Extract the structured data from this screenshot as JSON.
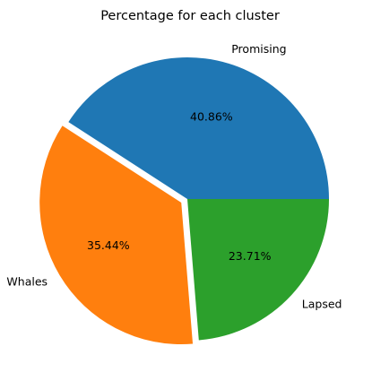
{
  "chart_data": {
    "type": "pie",
    "title": "Percentage for each cluster",
    "slices": [
      {
        "label": "Promising",
        "value": 40.86,
        "pct_label": "40.86%",
        "color": "#1f77b4",
        "explode": false
      },
      {
        "label": "Whales",
        "value": 35.44,
        "pct_label": "35.44%",
        "color": "#ff7f0e",
        "explode": true
      },
      {
        "label": "Lapsed",
        "value": 23.71,
        "pct_label": "23.71%",
        "color": "#2ca02c",
        "explode": false
      }
    ],
    "start_angle": 0,
    "direction": "counterclockwise"
  }
}
